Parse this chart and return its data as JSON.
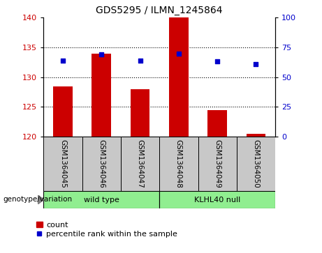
{
  "title": "GDS5295 / ILMN_1245864",
  "categories": [
    "GSM1364045",
    "GSM1364046",
    "GSM1364047",
    "GSM1364048",
    "GSM1364049",
    "GSM1364050"
  ],
  "bar_values": [
    128.5,
    134.0,
    128.0,
    140.0,
    124.5,
    120.5
  ],
  "dot_values_left": [
    132.8,
    133.8,
    132.8,
    133.9,
    132.7,
    132.2
  ],
  "ylim_left": [
    120,
    140
  ],
  "ylim_right": [
    0,
    100
  ],
  "yticks_left": [
    120,
    125,
    130,
    135,
    140
  ],
  "yticks_right": [
    0,
    25,
    50,
    75,
    100
  ],
  "bar_color": "#cc0000",
  "dot_color": "#0000cc",
  "bar_bottom": 120,
  "group1_label": "wild type",
  "group2_label": "KLHL40 null",
  "group1_indices": [
    0,
    1,
    2
  ],
  "group2_indices": [
    3,
    4,
    5
  ],
  "group_bg_color": "#90ee90",
  "tick_label_color_left": "#cc0000",
  "tick_label_color_right": "#0000cc",
  "grid_yticks": [
    125,
    130,
    135
  ],
  "xlabel_area_color": "#c8c8c8",
  "genotype_label": "genotype/variation",
  "legend_bar_label": "count",
  "legend_dot_label": "percentile rank within the sample",
  "title_fontsize": 10,
  "label_fontsize": 8,
  "tick_fontsize": 8,
  "legend_fontsize": 8
}
